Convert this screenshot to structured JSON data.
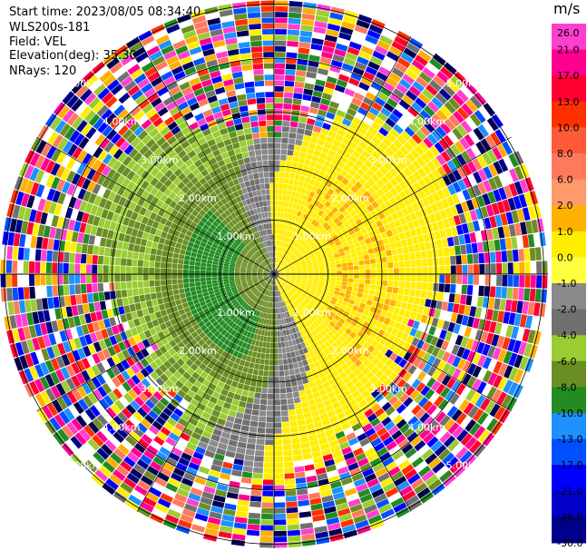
{
  "header": {
    "start_time": "Start time: 2023/08/05 08:34:40",
    "instrument": "WLS200s-181",
    "field": "Field: VEL",
    "elevation": "Elevation(deg): 35.30",
    "nrays": "NRays: 120"
  },
  "colorbar": {
    "unit": "m/s",
    "labels": [
      "26.0",
      "21.0",
      "17.0",
      "13.0",
      "10.0",
      "8.0",
      "6.0",
      "2.0",
      "1.0",
      "0.0",
      "-1.0",
      "-2.0",
      "-4.0",
      "-6.0",
      "-8.0",
      "-10.0",
      "-13.0",
      "-17.0",
      "-21.0",
      "-26.0",
      "-30.0"
    ],
    "colors": [
      "#ff3fd0",
      "#ff0090",
      "#ff0030",
      "#ff3000",
      "#ff5a3a",
      "#ff7a5a",
      "#ff9a6a",
      "#ffb000",
      "#ffee00",
      "#ffff40",
      "#8a8a8a",
      "#707070",
      "#9acd32",
      "#6b8e23",
      "#228b22",
      "#1e90ff",
      "#0050ff",
      "#0000ff",
      "#0000c8",
      "#00008b",
      "#000050"
    ]
  },
  "chart_data": {
    "type": "heatmap",
    "projection": "polar PPI",
    "field": "VEL",
    "unit": "m/s",
    "nrays": 120,
    "range_rings_km": [
      1.0,
      2.0,
      3.0,
      4.0,
      5.0
    ],
    "ring_labels": [
      "1.00km",
      "2.00km",
      "3.00km",
      "4.00km",
      "5.00km"
    ],
    "colorbar_range": [
      -30.0,
      26.0
    ],
    "pattern": "Negative (green, -4 to -8 m/s) velocities west of radar, positive (yellow, +2 m/s) east, zero-velocity gray band curving north-south; noisy random colors beyond ~3.2 km"
  }
}
